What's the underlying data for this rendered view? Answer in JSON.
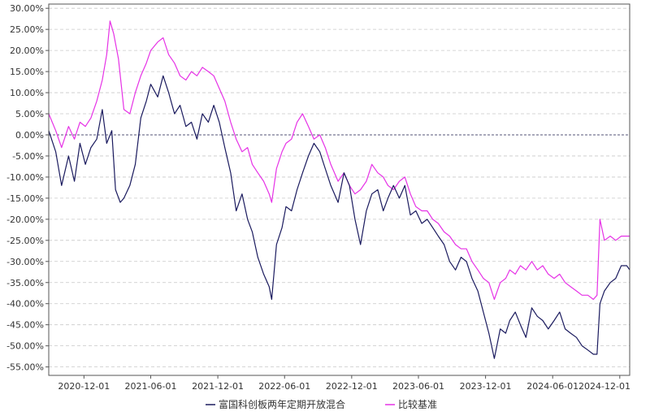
{
  "chart_data": {
    "type": "line",
    "title": "",
    "xlabel": "",
    "ylabel": "",
    "ylim": [
      -0.57,
      0.31
    ],
    "xlim": [
      "2020-08-27",
      "2024-12-28"
    ],
    "y_ticks": [
      "30.00%",
      "25.00%",
      "20.00%",
      "15.00%",
      "10.00%",
      "5.00%",
      "0.00%",
      "-5.00%",
      "-10.00%",
      "-15.00%",
      "-20.00%",
      "-25.00%",
      "-30.00%",
      "-35.00%",
      "-40.00%",
      "-45.00%",
      "-50.00%",
      "-55.00%"
    ],
    "x_ticks": [
      "2020-12-01",
      "2021-06-01",
      "2021-12-01",
      "2022-06-01",
      "2022-12-01",
      "2023-06-01",
      "2023-12-01",
      "2024-06-01",
      "2024-12-01"
    ],
    "grid": true,
    "legend_position": "bottom-center",
    "series": [
      {
        "name": "富国科创板两年定期开放混合",
        "color": "#1a1a5e",
        "x": [
          "2020-08-27",
          "2020-09-15",
          "2020-10-01",
          "2020-10-20",
          "2020-11-05",
          "2020-11-20",
          "2020-12-05",
          "2020-12-20",
          "2021-01-05",
          "2021-01-20",
          "2021-02-01",
          "2021-02-15",
          "2021-02-25",
          "2021-03-10",
          "2021-03-20",
          "2021-04-05",
          "2021-04-20",
          "2021-05-05",
          "2021-05-20",
          "2021-06-01",
          "2021-06-20",
          "2021-07-05",
          "2021-07-20",
          "2021-08-05",
          "2021-08-20",
          "2021-09-05",
          "2021-09-20",
          "2021-10-05",
          "2021-10-20",
          "2021-11-05",
          "2021-11-20",
          "2021-12-05",
          "2021-12-20",
          "2022-01-05",
          "2022-01-20",
          "2022-02-05",
          "2022-02-20",
          "2022-03-05",
          "2022-03-20",
          "2022-04-05",
          "2022-04-20",
          "2022-04-27",
          "2022-05-10",
          "2022-05-25",
          "2022-06-05",
          "2022-06-20",
          "2022-07-05",
          "2022-07-20",
          "2022-08-05",
          "2022-08-20",
          "2022-09-05",
          "2022-09-20",
          "2022-10-05",
          "2022-10-25",
          "2022-11-10",
          "2022-11-25",
          "2022-12-10",
          "2022-12-25",
          "2023-01-10",
          "2023-01-25",
          "2023-02-10",
          "2023-02-25",
          "2023-03-10",
          "2023-03-25",
          "2023-04-10",
          "2023-04-25",
          "2023-05-10",
          "2023-05-25",
          "2023-06-10",
          "2023-06-25",
          "2023-07-10",
          "2023-07-25",
          "2023-08-10",
          "2023-08-25",
          "2023-09-10",
          "2023-09-25",
          "2023-10-10",
          "2023-10-25",
          "2023-11-10",
          "2023-11-25",
          "2023-12-10",
          "2023-12-25",
          "2024-01-10",
          "2024-01-25",
          "2024-02-05",
          "2024-02-20",
          "2024-03-05",
          "2024-03-20",
          "2024-04-05",
          "2024-04-20",
          "2024-05-05",
          "2024-05-20",
          "2024-06-05",
          "2024-06-20",
          "2024-07-05",
          "2024-07-20",
          "2024-08-05",
          "2024-08-20",
          "2024-09-05",
          "2024-09-20",
          "2024-09-30",
          "2024-10-08",
          "2024-10-20",
          "2024-11-05",
          "2024-11-20",
          "2024-12-05",
          "2024-12-20",
          "2024-12-28"
        ],
        "y": [
          0.01,
          -0.04,
          -0.12,
          -0.05,
          -0.11,
          -0.02,
          -0.07,
          -0.03,
          -0.01,
          0.06,
          -0.02,
          0.01,
          -0.13,
          -0.16,
          -0.15,
          -0.12,
          -0.07,
          0.04,
          0.08,
          0.12,
          0.09,
          0.14,
          0.1,
          0.05,
          0.07,
          0.02,
          0.03,
          -0.01,
          0.05,
          0.03,
          0.07,
          0.03,
          -0.03,
          -0.09,
          -0.18,
          -0.14,
          -0.2,
          -0.23,
          -0.29,
          -0.33,
          -0.36,
          -0.39,
          -0.26,
          -0.22,
          -0.17,
          -0.18,
          -0.13,
          -0.09,
          -0.05,
          -0.02,
          -0.04,
          -0.08,
          -0.12,
          -0.16,
          -0.09,
          -0.12,
          -0.2,
          -0.26,
          -0.18,
          -0.14,
          -0.13,
          -0.18,
          -0.15,
          -0.12,
          -0.15,
          -0.12,
          -0.19,
          -0.18,
          -0.21,
          -0.2,
          -0.22,
          -0.24,
          -0.26,
          -0.3,
          -0.32,
          -0.29,
          -0.3,
          -0.34,
          -0.37,
          -0.42,
          -0.47,
          -0.53,
          -0.46,
          -0.47,
          -0.44,
          -0.42,
          -0.45,
          -0.48,
          -0.41,
          -0.43,
          -0.44,
          -0.46,
          -0.44,
          -0.42,
          -0.46,
          -0.47,
          -0.48,
          -0.5,
          -0.51,
          -0.52,
          -0.52,
          -0.4,
          -0.37,
          -0.35,
          -0.34,
          -0.31,
          -0.31,
          -0.32
        ]
      },
      {
        "name": "比较基准",
        "color": "#e632e6",
        "x": [
          "2020-08-27",
          "2020-09-15",
          "2020-10-01",
          "2020-10-20",
          "2020-11-05",
          "2020-11-20",
          "2020-12-05",
          "2020-12-20",
          "2021-01-05",
          "2021-01-20",
          "2021-02-01",
          "2021-02-10",
          "2021-02-20",
          "2021-03-05",
          "2021-03-20",
          "2021-04-05",
          "2021-04-20",
          "2021-05-05",
          "2021-05-20",
          "2021-06-01",
          "2021-06-20",
          "2021-07-05",
          "2021-07-20",
          "2021-08-05",
          "2021-08-20",
          "2021-09-05",
          "2021-09-20",
          "2021-10-05",
          "2021-10-20",
          "2021-11-05",
          "2021-11-20",
          "2021-12-05",
          "2021-12-20",
          "2022-01-05",
          "2022-01-20",
          "2022-02-05",
          "2022-02-20",
          "2022-03-05",
          "2022-03-20",
          "2022-04-05",
          "2022-04-20",
          "2022-04-27",
          "2022-05-10",
          "2022-05-25",
          "2022-06-05",
          "2022-06-20",
          "2022-07-05",
          "2022-07-20",
          "2022-08-05",
          "2022-08-20",
          "2022-09-05",
          "2022-09-20",
          "2022-10-05",
          "2022-10-25",
          "2022-11-10",
          "2022-11-25",
          "2022-12-10",
          "2022-12-25",
          "2023-01-10",
          "2023-01-25",
          "2023-02-10",
          "2023-02-25",
          "2023-03-10",
          "2023-03-25",
          "2023-04-10",
          "2023-04-25",
          "2023-05-10",
          "2023-05-25",
          "2023-06-10",
          "2023-06-25",
          "2023-07-10",
          "2023-07-25",
          "2023-08-10",
          "2023-08-25",
          "2023-09-10",
          "2023-09-25",
          "2023-10-10",
          "2023-10-25",
          "2023-11-10",
          "2023-11-25",
          "2023-12-10",
          "2023-12-25",
          "2024-01-10",
          "2024-01-25",
          "2024-02-05",
          "2024-02-20",
          "2024-03-05",
          "2024-03-20",
          "2024-04-05",
          "2024-04-20",
          "2024-05-05",
          "2024-05-20",
          "2024-06-05",
          "2024-06-20",
          "2024-07-05",
          "2024-07-20",
          "2024-08-05",
          "2024-08-20",
          "2024-09-05",
          "2024-09-20",
          "2024-09-30",
          "2024-10-08",
          "2024-10-20",
          "2024-11-05",
          "2024-11-20",
          "2024-12-05",
          "2024-12-20",
          "2024-12-28"
        ],
        "y": [
          0.05,
          0.01,
          -0.03,
          0.02,
          -0.01,
          0.03,
          0.02,
          0.04,
          0.08,
          0.13,
          0.19,
          0.27,
          0.24,
          0.18,
          0.06,
          0.05,
          0.1,
          0.14,
          0.17,
          0.2,
          0.22,
          0.23,
          0.19,
          0.17,
          0.14,
          0.13,
          0.15,
          0.14,
          0.16,
          0.15,
          0.14,
          0.11,
          0.08,
          0.03,
          -0.01,
          -0.04,
          -0.03,
          -0.07,
          -0.09,
          -0.11,
          -0.14,
          -0.16,
          -0.08,
          -0.04,
          -0.02,
          -0.01,
          0.03,
          0.05,
          0.02,
          -0.01,
          0.0,
          -0.03,
          -0.07,
          -0.11,
          -0.09,
          -0.12,
          -0.14,
          -0.13,
          -0.11,
          -0.07,
          -0.09,
          -0.1,
          -0.12,
          -0.13,
          -0.11,
          -0.1,
          -0.14,
          -0.17,
          -0.18,
          -0.18,
          -0.2,
          -0.21,
          -0.23,
          -0.24,
          -0.26,
          -0.27,
          -0.27,
          -0.3,
          -0.32,
          -0.34,
          -0.35,
          -0.39,
          -0.35,
          -0.34,
          -0.32,
          -0.33,
          -0.31,
          -0.32,
          -0.3,
          -0.32,
          -0.31,
          -0.33,
          -0.34,
          -0.33,
          -0.35,
          -0.36,
          -0.37,
          -0.38,
          -0.38,
          -0.39,
          -0.38,
          -0.2,
          -0.25,
          -0.24,
          -0.25,
          -0.24,
          -0.24,
          -0.24
        ]
      }
    ]
  }
}
